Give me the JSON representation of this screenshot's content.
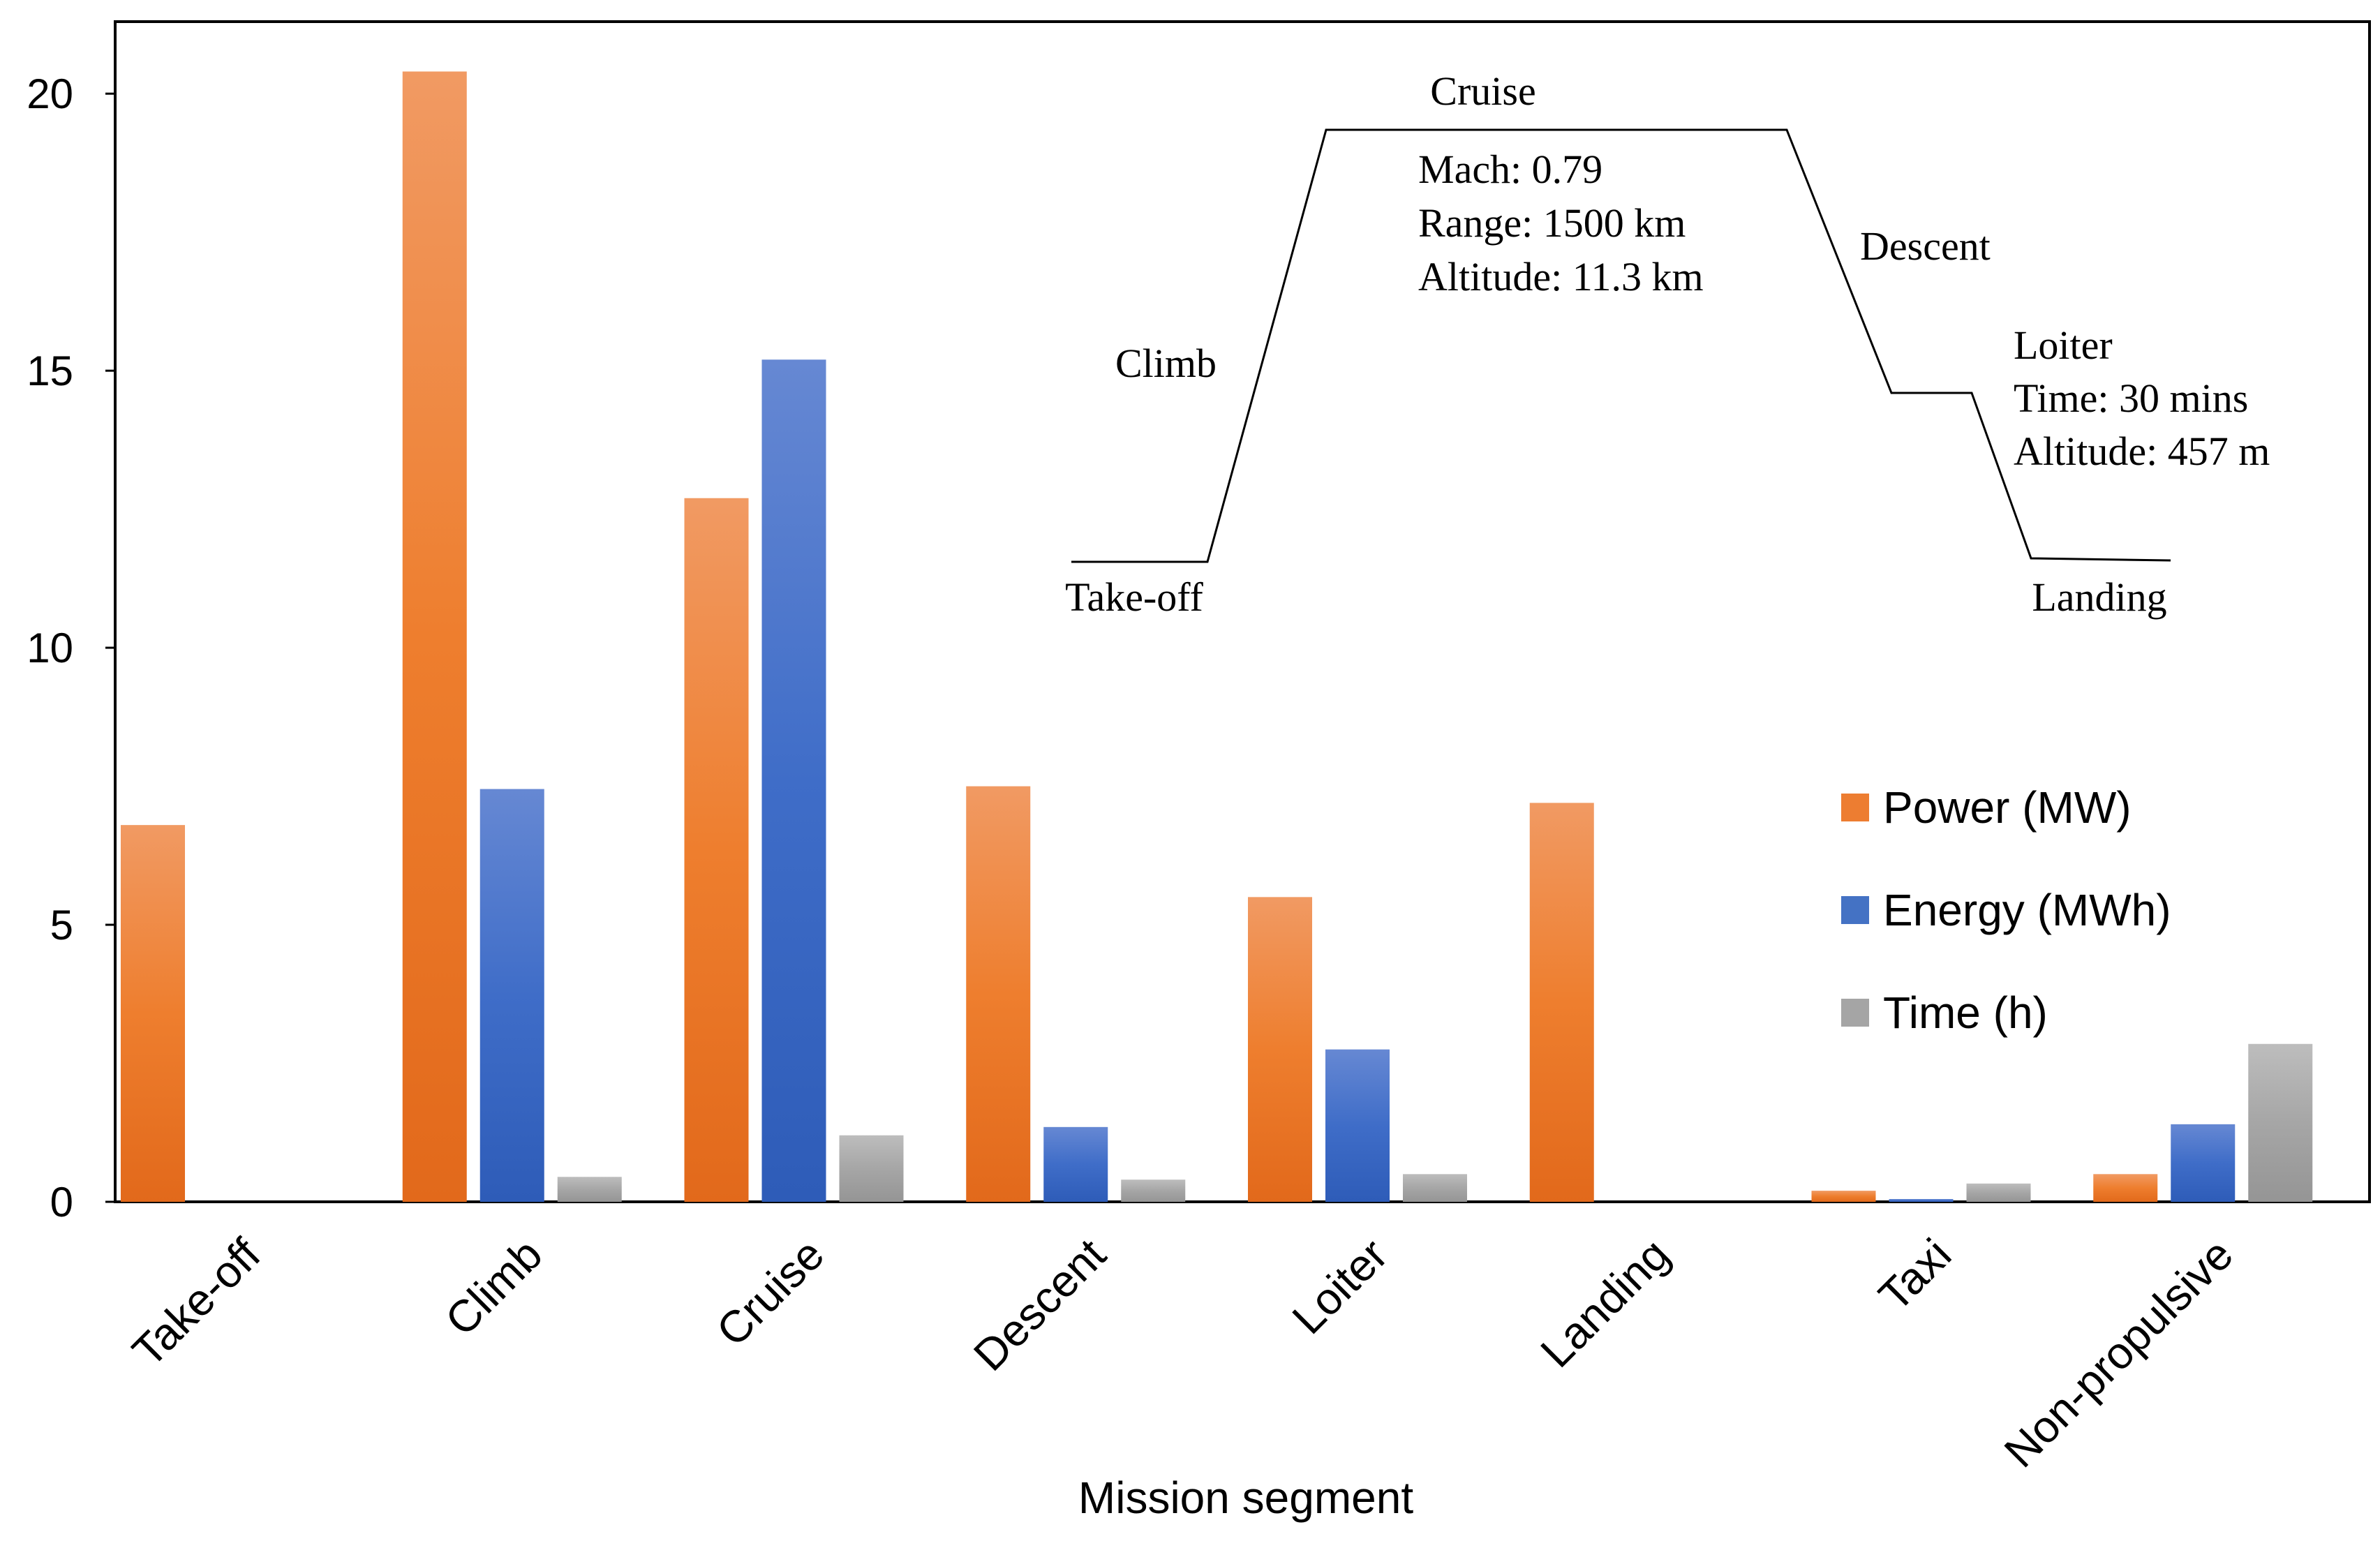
{
  "chart_data": {
    "type": "bar",
    "xlabel": "Mission segment",
    "ylabel": "",
    "ylim": [
      0,
      21.3
    ],
    "yticks": [
      0,
      5,
      10,
      15,
      20
    ],
    "grid": false,
    "legend_position": "right",
    "categories": [
      "Take-off",
      "Climb",
      "Cruise",
      "Descent",
      "Loiter",
      "Landing",
      "Taxi",
      "Non-propulsive"
    ],
    "series": [
      {
        "name": "Power (MW)",
        "color": "#ED7D31",
        "values": [
          6.8,
          20.4,
          12.7,
          7.5,
          5.5,
          7.2,
          0.2,
          0.5
        ]
      },
      {
        "name": "Energy (MWh)",
        "color": "#4472C4",
        "values": [
          0,
          7.45,
          15.2,
          1.35,
          2.75,
          0,
          0.05,
          1.4
        ]
      },
      {
        "name": "Time (h)",
        "color": "#A5A5A5",
        "values": [
          0,
          0.45,
          1.2,
          0.4,
          0.5,
          0,
          0.33,
          2.85
        ]
      }
    ],
    "inset_profile": {
      "labels": {
        "takeoff": "Take-off",
        "climb": "Climb",
        "cruise": "Cruise",
        "cruise_details": [
          "Mach:  0.79",
          "Range: 1500 km",
          "Altitude: 11.3 km"
        ],
        "descent": "Descent",
        "loiter": "Loiter",
        "loiter_details": [
          "Time: 30 mins",
          "Altitude: 457 m"
        ],
        "landing": "Landing"
      }
    }
  }
}
